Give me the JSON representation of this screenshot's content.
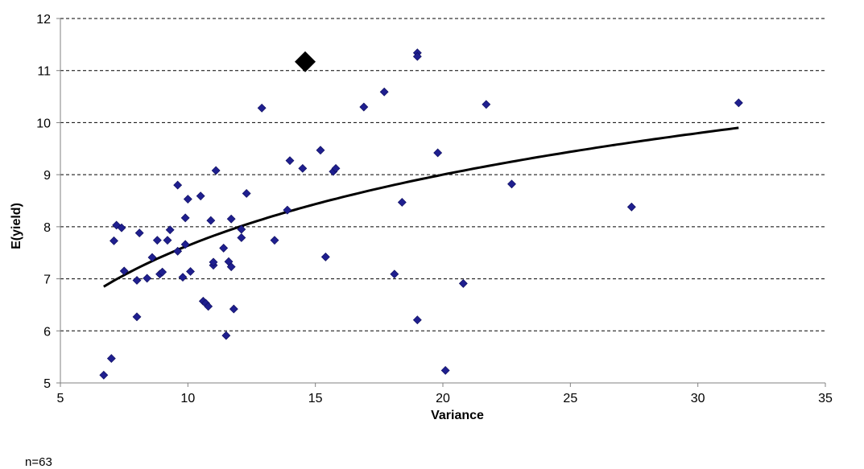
{
  "chart_data": {
    "type": "scatter",
    "title": "",
    "xlabel": "Variance",
    "ylabel": "E(yield)",
    "note": "n=63",
    "xlim": [
      5,
      35
    ],
    "ylim": [
      5,
      12
    ],
    "x_ticks": [
      5,
      10,
      15,
      20,
      25,
      30,
      35
    ],
    "y_ticks": [
      5,
      6,
      7,
      8,
      9,
      10,
      11,
      12
    ],
    "grid": "horizontal dashed",
    "legend": "none",
    "colors": {
      "points": "#1f1f8f",
      "highlight": "#000000",
      "trend": "#000000"
    },
    "series": [
      {
        "type": "scatter",
        "marker": "diamond",
        "points": [
          [
            6.7,
            5.15
          ],
          [
            7.0,
            5.47
          ],
          [
            7.1,
            7.73
          ],
          [
            7.2,
            8.03
          ],
          [
            7.4,
            7.98
          ],
          [
            7.5,
            7.15
          ],
          [
            8.0,
            6.97
          ],
          [
            8.0,
            6.27
          ],
          [
            8.1,
            7.88
          ],
          [
            8.4,
            7.01
          ],
          [
            8.6,
            7.41
          ],
          [
            8.8,
            7.74
          ],
          [
            8.9,
            7.09
          ],
          [
            9.0,
            7.13
          ],
          [
            9.2,
            7.74
          ],
          [
            9.3,
            7.94
          ],
          [
            9.6,
            8.8
          ],
          [
            9.6,
            7.53
          ],
          [
            9.8,
            7.03
          ],
          [
            9.9,
            8.17
          ],
          [
            9.9,
            7.66
          ],
          [
            10.0,
            8.53
          ],
          [
            10.1,
            7.14
          ],
          [
            10.5,
            8.59
          ],
          [
            10.6,
            6.57
          ],
          [
            10.7,
            6.53
          ],
          [
            10.8,
            6.47
          ],
          [
            10.9,
            8.12
          ],
          [
            11.0,
            7.26
          ],
          [
            11.0,
            7.32
          ],
          [
            11.1,
            9.08
          ],
          [
            11.4,
            7.59
          ],
          [
            11.5,
            5.91
          ],
          [
            11.6,
            7.33
          ],
          [
            11.7,
            7.23
          ],
          [
            11.7,
            8.15
          ],
          [
            11.8,
            6.42
          ],
          [
            12.1,
            7.79
          ],
          [
            12.1,
            7.95
          ],
          [
            12.3,
            8.64
          ],
          [
            12.9,
            10.28
          ],
          [
            13.4,
            7.74
          ],
          [
            13.9,
            8.32
          ],
          [
            14.0,
            9.27
          ],
          [
            14.5,
            9.12
          ],
          [
            15.2,
            9.47
          ],
          [
            15.4,
            7.42
          ],
          [
            15.7,
            9.06
          ],
          [
            15.8,
            9.12
          ],
          [
            16.9,
            10.3
          ],
          [
            17.7,
            10.59
          ],
          [
            18.1,
            7.09
          ],
          [
            18.4,
            8.47
          ],
          [
            19.0,
            11.34
          ],
          [
            19.0,
            11.27
          ],
          [
            19.0,
            6.21
          ],
          [
            19.8,
            9.42
          ],
          [
            20.1,
            5.24
          ],
          [
            20.8,
            6.91
          ],
          [
            21.7,
            10.35
          ],
          [
            22.7,
            8.82
          ],
          [
            27.4,
            8.38
          ],
          [
            31.6,
            10.38
          ]
        ]
      },
      {
        "type": "highlight",
        "marker": "large-diamond",
        "points": [
          [
            14.6,
            11.17
          ]
        ]
      },
      {
        "type": "trendline",
        "fit": "logarithmic",
        "x_range": [
          6.7,
          31.6
        ],
        "y_range": [
          6.85,
          9.9
        ]
      }
    ]
  }
}
